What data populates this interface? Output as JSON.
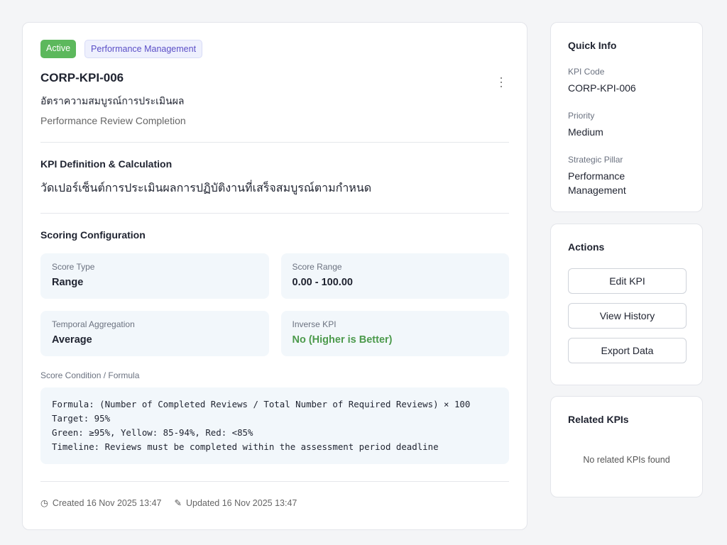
{
  "header": {
    "status": "Active",
    "tag": "Performance Management",
    "code": "CORP-KPI-006",
    "name_th": "อัตราความสมบูรณ์การประเมินผล",
    "name_en": "Performance Review Completion"
  },
  "definition": {
    "title": "KPI Definition & Calculation",
    "text": "วัดเปอร์เซ็นต์การประเมินผลการปฏิบัติงานที่เสร็จสมบูรณ์ตามกำหนด"
  },
  "scoring": {
    "title": "Scoring Configuration",
    "items": [
      {
        "label": "Score Type",
        "value": "Range"
      },
      {
        "label": "Score Range",
        "value": "0.00 - 100.00"
      },
      {
        "label": "Temporal Aggregation",
        "value": "Average"
      },
      {
        "label": "Inverse KPI",
        "value": "No (Higher is Better)"
      }
    ],
    "formula_label": "Score Condition / Formula",
    "formula": "Formula: (Number of Completed Reviews / Total Number of Required Reviews) × 100\nTarget: 95%\nGreen: ≥95%, Yellow: 85-94%, Red: <85%\nTimeline: Reviews must be completed within the assessment period deadline"
  },
  "footer": {
    "created": "Created 16 Nov 2025 13:47",
    "updated": "Updated 16 Nov 2025 13:47"
  },
  "quick_info": {
    "title": "Quick Info",
    "kpi_code_label": "KPI Code",
    "kpi_code": "CORP-KPI-006",
    "priority_label": "Priority",
    "priority": "Medium",
    "pillar_label": "Strategic Pillar",
    "pillar": "Performance Management"
  },
  "actions": {
    "title": "Actions",
    "edit": "Edit KPI",
    "history": "View History",
    "export": "Export Data"
  },
  "related": {
    "title": "Related KPIs",
    "empty": "No related KPIs found"
  },
  "colors": {
    "active": "#5cb85c",
    "tag": "#5b4fc7",
    "positive": "#4c9a4c"
  }
}
